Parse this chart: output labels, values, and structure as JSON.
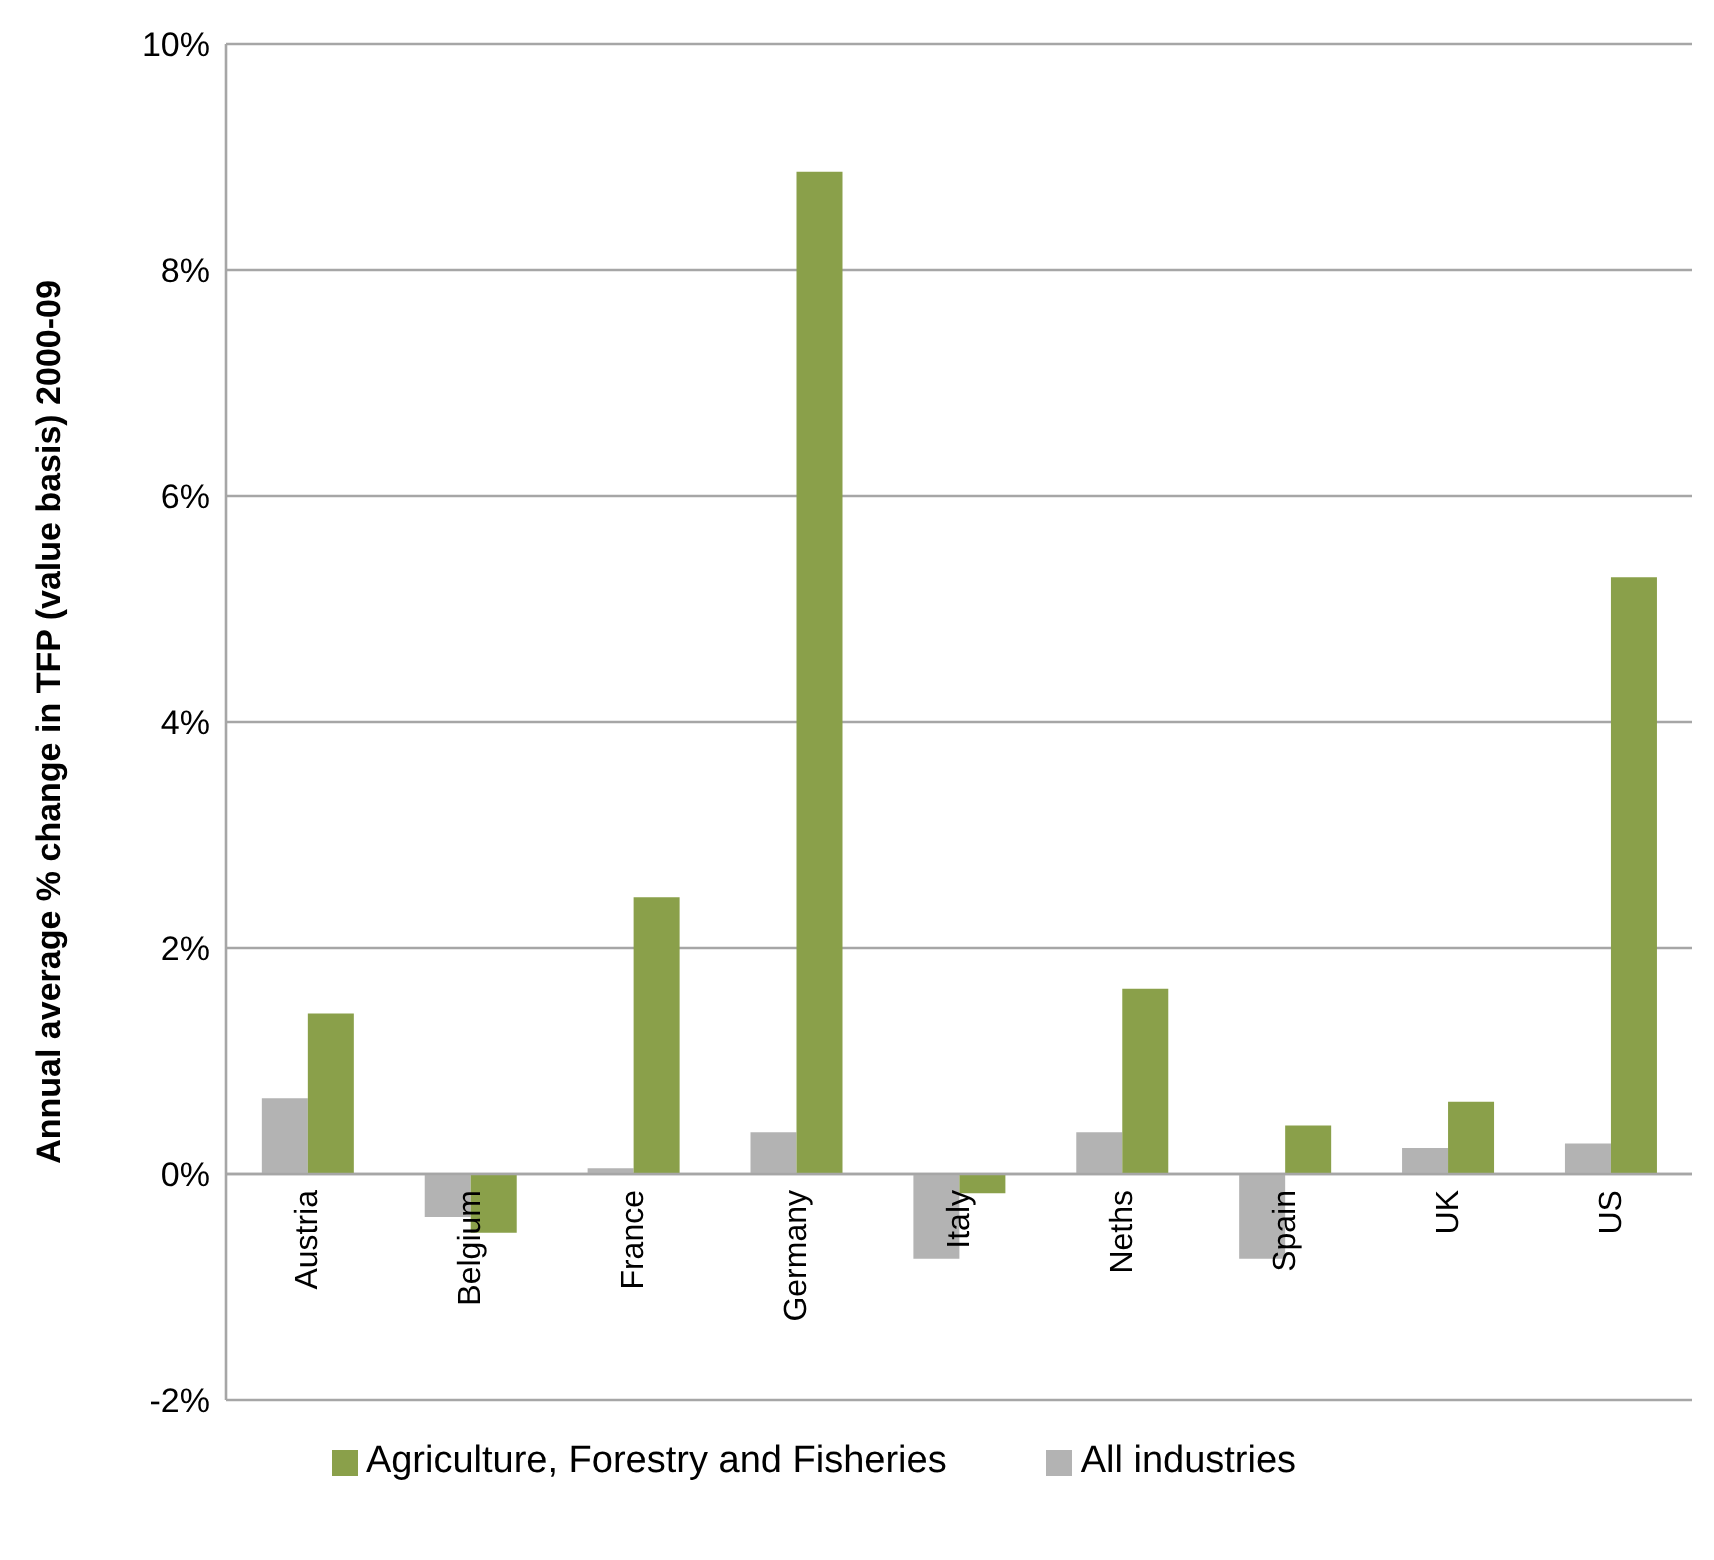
{
  "chart_data": {
    "type": "bar",
    "ylabel": "Annual average % change in TFP (value basis) 2000-09",
    "categories": [
      "Austria",
      "Belgium",
      "France",
      "Germany",
      "Italy",
      "Neths",
      "Spain",
      "UK",
      "US"
    ],
    "series": [
      {
        "name": "All industries",
        "color": "#b3b3b3",
        "values": [
          0.67,
          -0.38,
          0.05,
          0.37,
          -0.75,
          0.37,
          -0.75,
          0.23,
          0.27
        ]
      },
      {
        "name": "Agriculture, Forestry and Fisheries",
        "color": "#8aa04a",
        "values": [
          1.42,
          -0.52,
          2.45,
          8.87,
          -0.17,
          1.64,
          0.43,
          0.64,
          5.28
        ]
      }
    ],
    "ylim": [
      -2,
      10
    ],
    "yticks": [
      {
        "value": -2,
        "label": "-2%"
      },
      {
        "value": 0,
        "label": "0%"
      },
      {
        "value": 2,
        "label": "2%"
      },
      {
        "value": 4,
        "label": "4%"
      },
      {
        "value": 6,
        "label": "6%"
      },
      {
        "value": 8,
        "label": "8%"
      },
      {
        "value": 10,
        "label": "10%"
      }
    ],
    "grid": "y",
    "legend": "bottom"
  }
}
